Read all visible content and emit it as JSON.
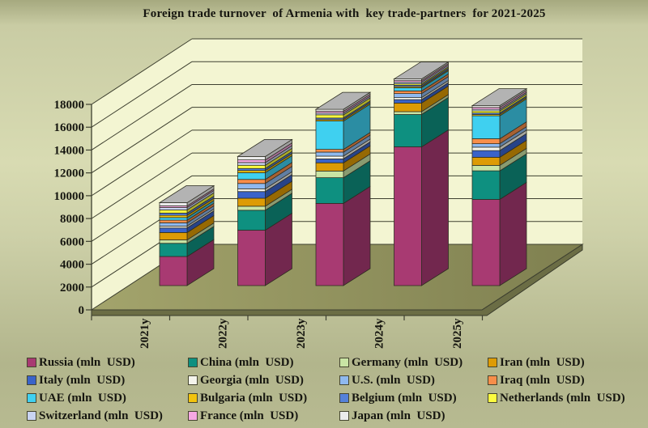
{
  "chart_data": {
    "type": "bar",
    "stacked": true,
    "projection": "3d",
    "title": "Foreign trade turnover  of Armenia with  key trade-partners  for 2021-2025",
    "categories": [
      "2021y",
      "2022y",
      "2023y",
      "2024y",
      "2025y"
    ],
    "series": [
      {
        "name": "Russia",
        "legend_label": "Russia (mln  USD)",
        "color": "#A83A72",
        "values": [
          2550,
          4850,
          7200,
          12150,
          7550
        ]
      },
      {
        "name": "China",
        "legend_label": "China (mln  USD)",
        "color": "#0E9080",
        "values": [
          1150,
          1750,
          2250,
          2840,
          2500
        ]
      },
      {
        "name": "Germany",
        "legend_label": "Germany (mln  USD)",
        "color": "#C9E4A4",
        "values": [
          300,
          350,
          590,
          250,
          480
        ]
      },
      {
        "name": "Iran",
        "legend_label": "Iran (mln  USD)",
        "color": "#DD9B05",
        "values": [
          650,
          700,
          710,
          750,
          710
        ]
      },
      {
        "name": "Italy",
        "legend_label": "Italy (mln  USD)",
        "color": "#3A63C9",
        "values": [
          400,
          590,
          350,
          300,
          590
        ]
      },
      {
        "name": "Georgia",
        "legend_label": "Georgia (mln  USD)",
        "color": "#F4F4EC",
        "values": [
          170,
          240,
          240,
          180,
          300
        ]
      },
      {
        "name": "U.S.",
        "legend_label": "U.S. (mln  USD)",
        "color": "#8FB9EF",
        "values": [
          280,
          470,
          350,
          350,
          300
        ]
      },
      {
        "name": "Iraq",
        "legend_label": "Iraq (mln  USD)",
        "color": "#F78E4A",
        "values": [
          230,
          350,
          240,
          230,
          430
        ]
      },
      {
        "name": "UAE",
        "legend_label": "UAE (mln  USD)",
        "color": "#3FD0F0",
        "values": [
          230,
          590,
          2480,
          280,
          2010
        ]
      },
      {
        "name": "Bulgaria",
        "legend_label": "Bulgaria (mln  USD)",
        "color": "#F2C30D",
        "values": [
          200,
          190,
          130,
          100,
          120
        ]
      },
      {
        "name": "Belgium",
        "legend_label": "Belgium (mln  USD)",
        "color": "#5581D9",
        "values": [
          190,
          180,
          140,
          130,
          130
        ]
      },
      {
        "name": "Netherlands",
        "legend_label": "Netherlands (mln  USD)",
        "color": "#FCFC3F",
        "values": [
          280,
          280,
          280,
          120,
          180
        ]
      },
      {
        "name": "Switzerland",
        "legend_label": "Switzerland (mln  USD)",
        "color": "#C9D4F2",
        "values": [
          210,
          240,
          150,
          150,
          140
        ]
      },
      {
        "name": "France",
        "legend_label": "France (mln  USD)",
        "color": "#F6A8E2",
        "values": [
          140,
          230,
          160,
          130,
          170
        ]
      },
      {
        "name": "Japan",
        "legend_label": "Japan (mln  USD)",
        "color": "#EBEBEB",
        "values": [
          280,
          300,
          170,
          140,
          150
        ]
      }
    ],
    "xlabel": "",
    "ylabel": "",
    "ylim": [
      0,
      18000
    ],
    "ytick_step": 2000,
    "grid": true,
    "legend_position": "bottom",
    "wall_color": "#F3F5D2",
    "floor_color": "#97985F",
    "gridline_color": "#3E4030"
  }
}
